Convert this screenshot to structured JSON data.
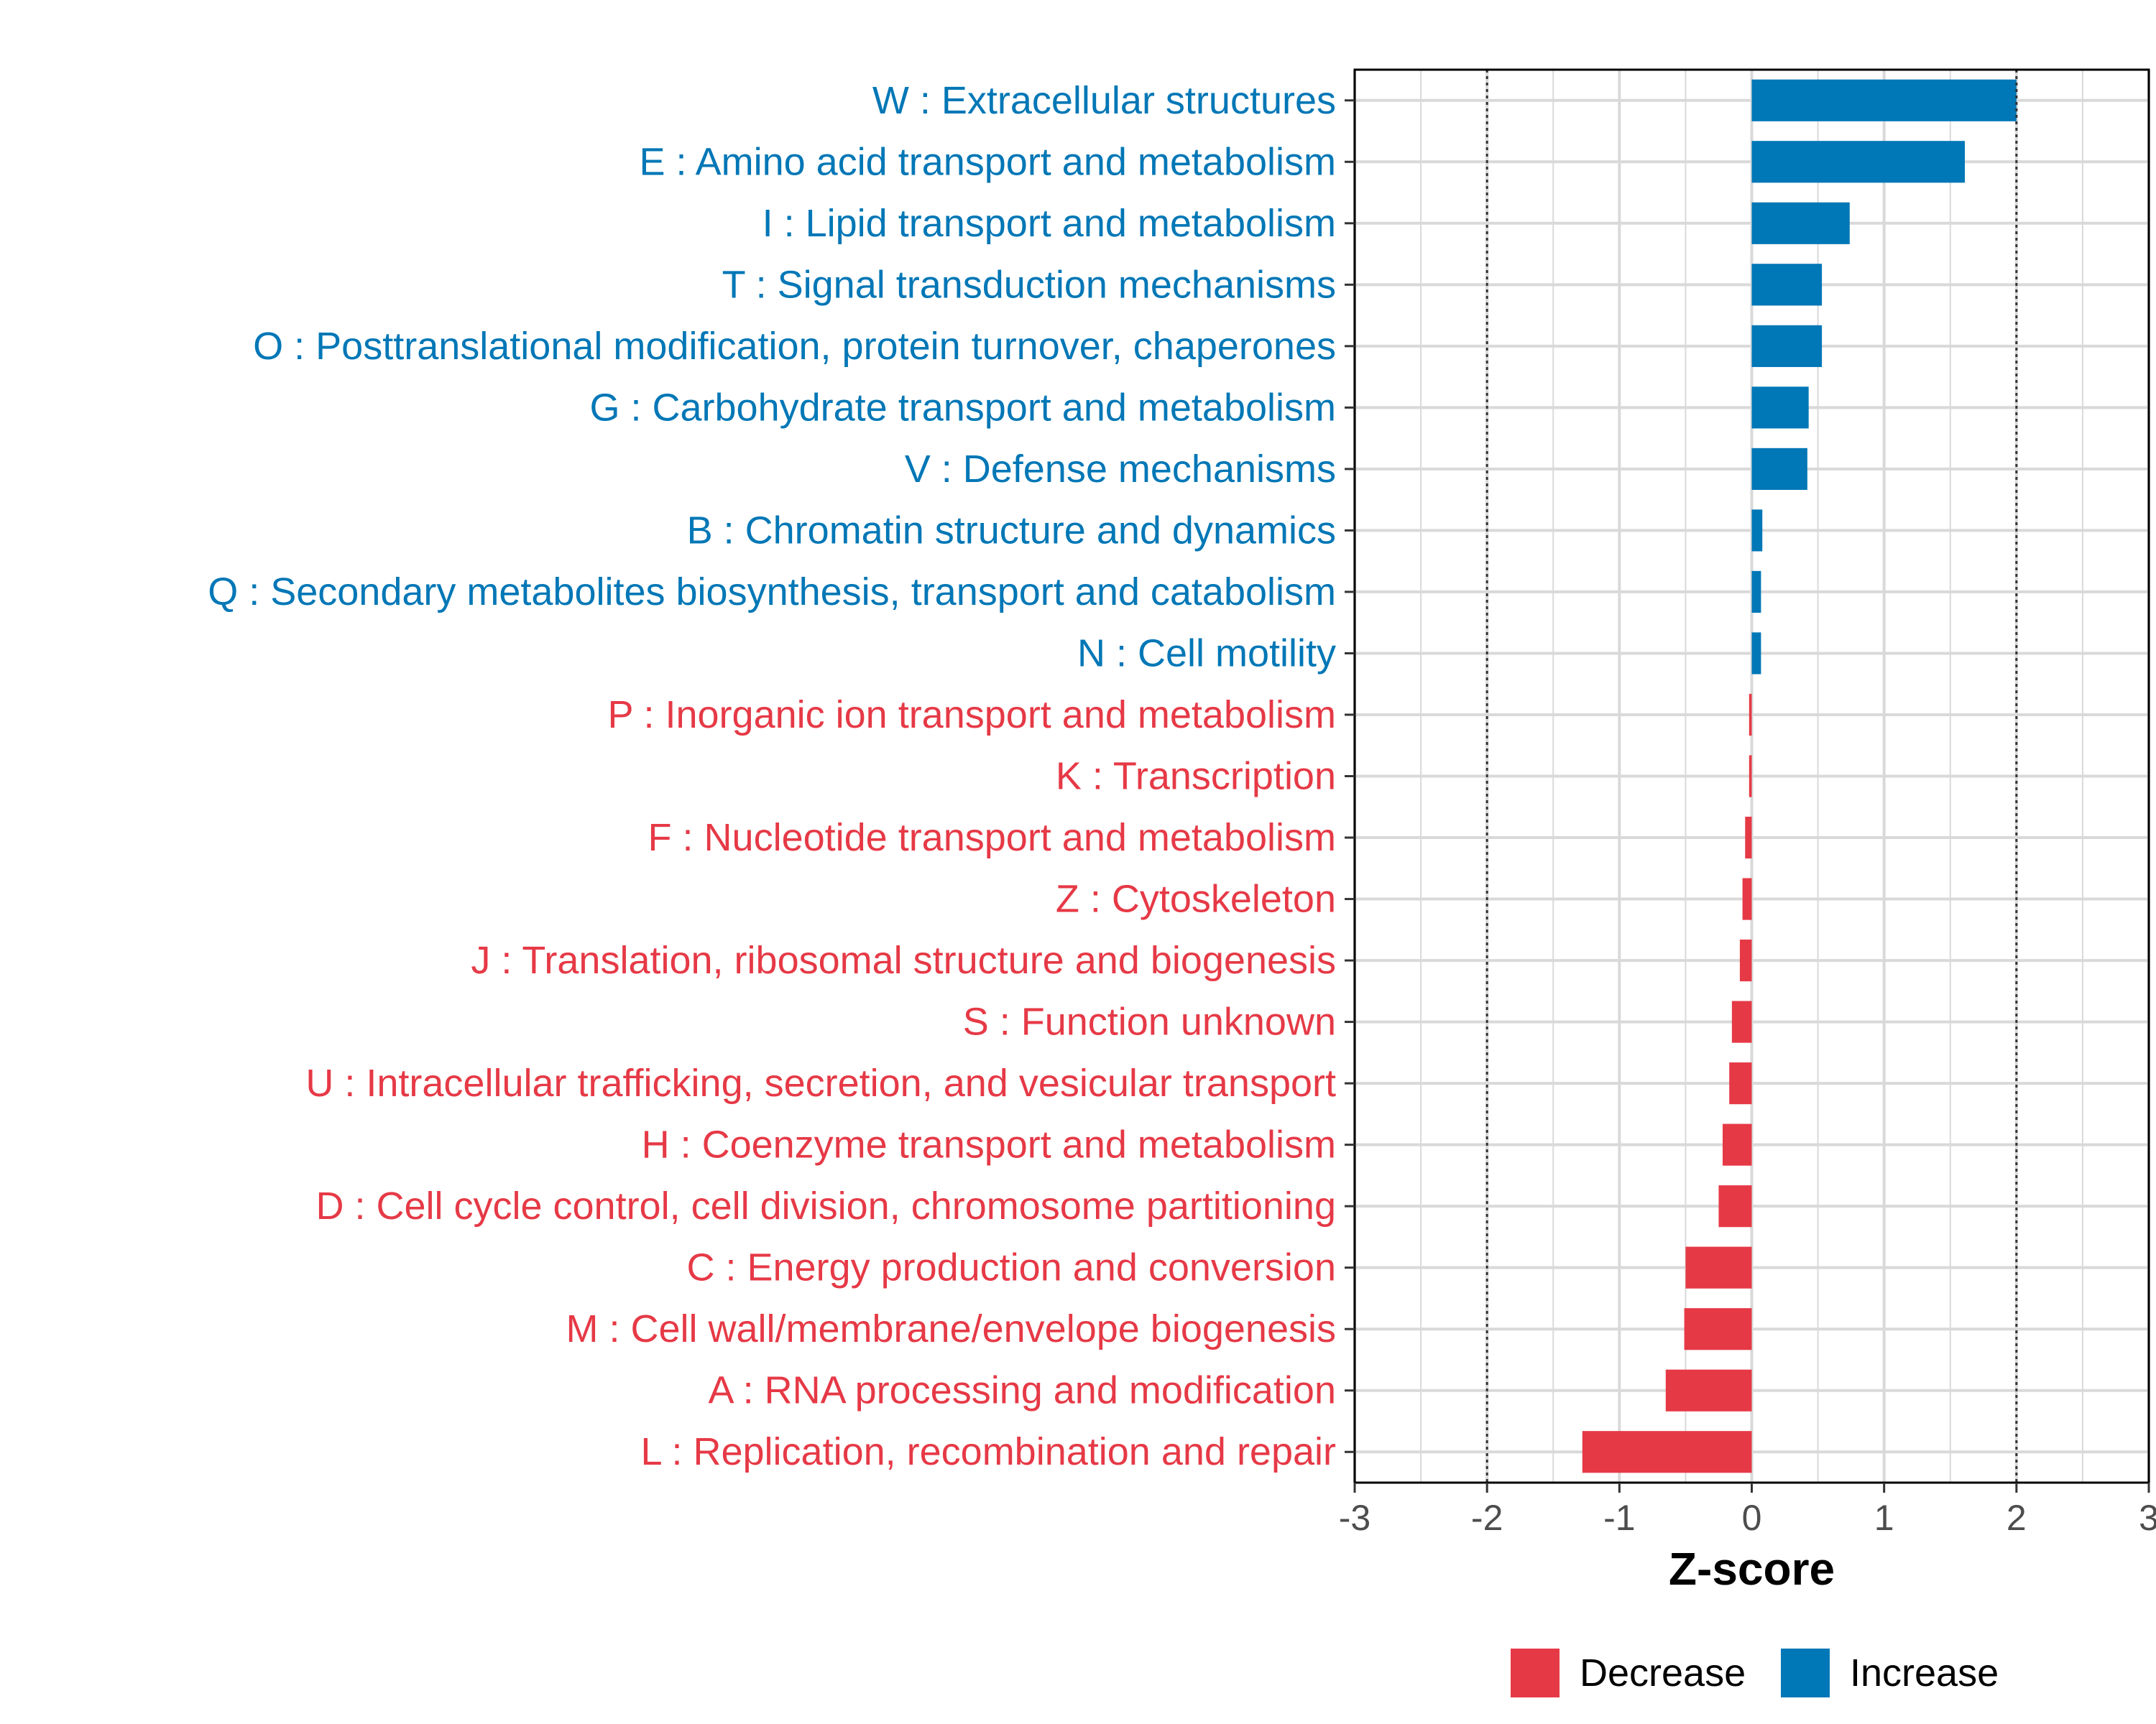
{
  "chart_data": {
    "type": "bar",
    "orientation": "horizontal",
    "title": "",
    "xlabel": "Z-score",
    "ylabel": "",
    "xlim": [
      -3,
      3
    ],
    "xticks": [
      -3,
      -2,
      -1,
      0,
      1,
      2,
      3
    ],
    "threshold_lines": [
      -2,
      2
    ],
    "grid": true,
    "legend_position": "bottom-right",
    "colors": {
      "Decrease": "#e63946",
      "Increase": "#0077b6"
    },
    "legend": [
      {
        "name": "Decrease",
        "color": "#e63946"
      },
      {
        "name": "Increase",
        "color": "#0077b6"
      }
    ],
    "categories": [
      "W : Extracellular structures",
      "E : Amino acid transport and metabolism",
      "I : Lipid transport and metabolism",
      "T : Signal transduction mechanisms",
      "O : Posttranslational modification, protein turnover, chaperones",
      "G : Carbohydrate transport and metabolism",
      "V : Defense mechanisms",
      "B : Chromatin structure and dynamics",
      "Q : Secondary metabolites biosynthesis, transport and catabolism",
      "N : Cell motility",
      "P : Inorganic ion transport and metabolism",
      "K : Transcription",
      "F : Nucleotide transport and metabolism",
      "Z : Cytoskeleton",
      "J : Translation, ribosomal structure and biogenesis",
      "S : Function unknown",
      "U : Intracellular trafficking, secretion, and vesicular transport",
      "H : Coenzyme transport and metabolism",
      "D : Cell cycle control, cell division, chromosome partitioning",
      "C : Energy production and conversion",
      "M : Cell wall/membrane/envelope biogenesis",
      "A : RNA processing and modification",
      "L : Replication, recombination and repair"
    ],
    "values": [
      2.0,
      1.61,
      0.74,
      0.53,
      0.53,
      0.43,
      0.42,
      0.08,
      0.07,
      0.07,
      -0.02,
      -0.02,
      -0.05,
      -0.07,
      -0.09,
      -0.15,
      -0.17,
      -0.22,
      -0.25,
      -0.5,
      -0.51,
      -0.65,
      -1.28
    ],
    "groups": [
      "Increase",
      "Increase",
      "Increase",
      "Increase",
      "Increase",
      "Increase",
      "Increase",
      "Increase",
      "Increase",
      "Increase",
      "Decrease",
      "Decrease",
      "Decrease",
      "Decrease",
      "Decrease",
      "Decrease",
      "Decrease",
      "Decrease",
      "Decrease",
      "Decrease",
      "Decrease",
      "Decrease",
      "Decrease"
    ]
  }
}
